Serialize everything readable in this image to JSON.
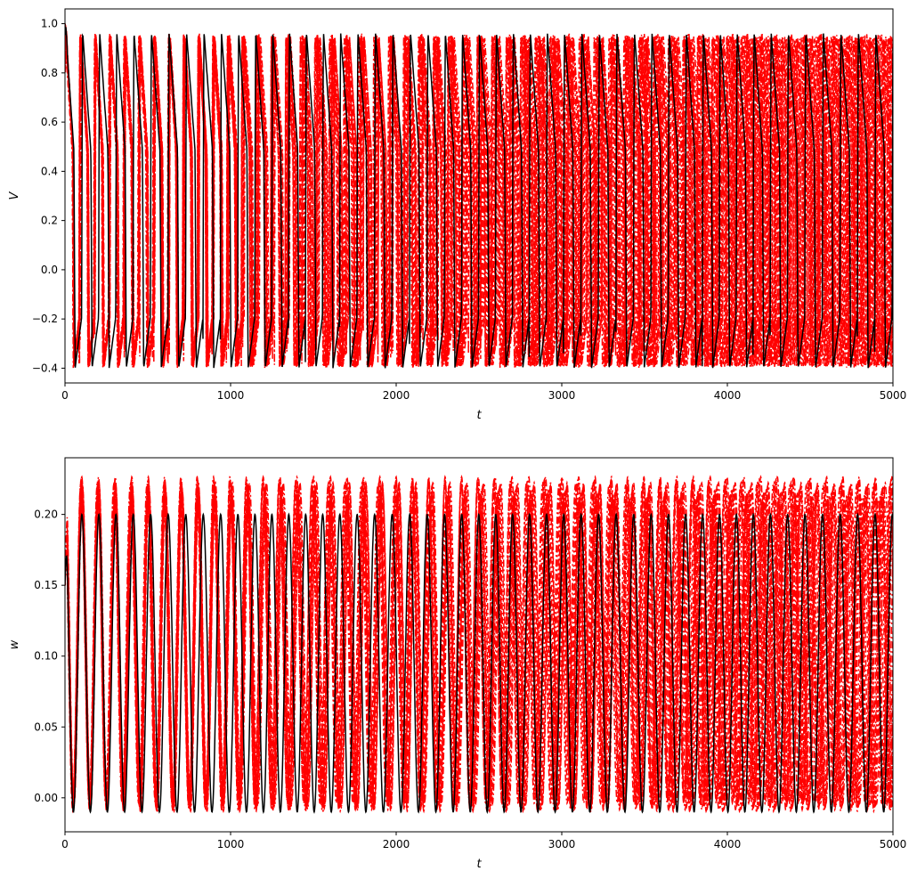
{
  "chart_data": [
    {
      "type": "line",
      "panel": "top",
      "title": "",
      "xlabel": "t",
      "ylabel": "V",
      "xlim": [
        0,
        5000
      ],
      "ylim": [
        -0.46,
        1.06
      ],
      "xticks": [
        0,
        1000,
        2000,
        3000,
        4000,
        5000
      ],
      "yticks": [
        -0.4,
        -0.2,
        0.0,
        0.2,
        0.4,
        0.6,
        0.8,
        1.0
      ],
      "ytick_labels": [
        "−0.4",
        "−0.2",
        "0.0",
        "0.2",
        "0.4",
        "0.6",
        "0.8",
        "1.0"
      ],
      "grid": false,
      "series": [
        {
          "style": "red-dashdot",
          "color": "#ff0000",
          "count": 12,
          "initial_value": 1.0,
          "min": -0.4,
          "max": 0.96,
          "mean_period": 96,
          "period_spread": 14
        },
        {
          "style": "black-solid",
          "color": "#000000",
          "count": 1,
          "initial_value": 1.0,
          "min": -0.4,
          "max": 0.96,
          "period": 104
        }
      ]
    },
    {
      "type": "line",
      "panel": "bottom",
      "title": "",
      "xlabel": "t",
      "ylabel": "w",
      "xlim": [
        0,
        5000
      ],
      "ylim": [
        -0.024,
        0.24
      ],
      "xticks": [
        0,
        1000,
        2000,
        3000,
        4000,
        5000
      ],
      "yticks": [
        0.0,
        0.05,
        0.1,
        0.15,
        0.2
      ],
      "ytick_labels": [
        "0.00",
        "0.05",
        "0.10",
        "0.15",
        "0.20"
      ],
      "grid": false,
      "series": [
        {
          "style": "red-dashdot",
          "color": "#ff0000",
          "count": 12,
          "initial_value": 0.15,
          "min": -0.01,
          "max": 0.227,
          "mean_period": 96,
          "period_spread": 14
        },
        {
          "style": "black-solid",
          "color": "#000000",
          "count": 1,
          "initial_value": 0.15,
          "min": -0.01,
          "max": 0.2,
          "period": 104
        }
      ]
    }
  ]
}
